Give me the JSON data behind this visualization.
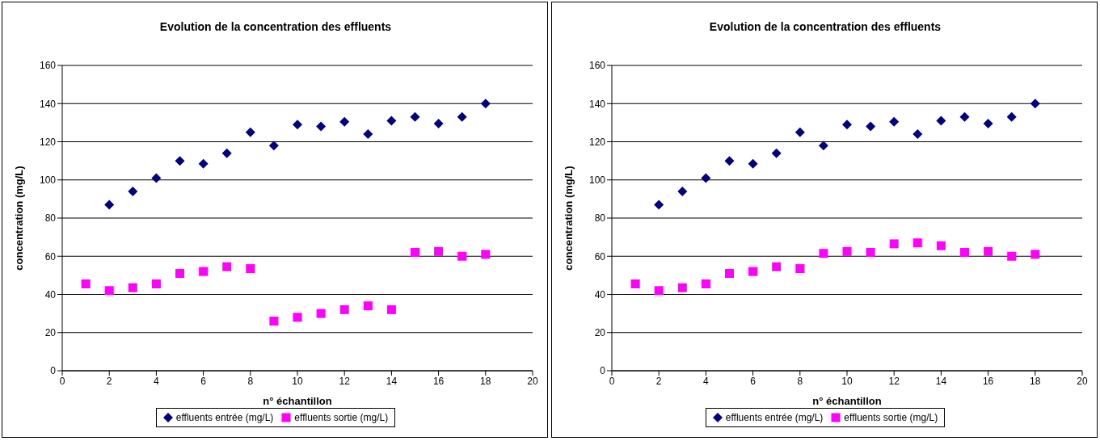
{
  "chart_data": [
    {
      "type": "scatter",
      "title": "Evolution de la concentration des effluents",
      "xlabel": "n° échantillon",
      "ylabel": "concentration (mg/L)",
      "xlim": [
        0,
        20
      ],
      "xticks": [
        0,
        2,
        4,
        6,
        8,
        10,
        12,
        14,
        16,
        18,
        20
      ],
      "ylim": [
        0,
        160
      ],
      "yticks": [
        0,
        20,
        40,
        60,
        80,
        100,
        120,
        140,
        160
      ],
      "grid": "y",
      "legend": "bottom",
      "series": [
        {
          "name": "effluents entrée (mg/L)",
          "color": "#000080",
          "marker": "diamond",
          "x": [
            2,
            3,
            4,
            5,
            6,
            7,
            8,
            9,
            10,
            11,
            12,
            13,
            14,
            15,
            16,
            17,
            18
          ],
          "values": [
            87,
            94,
            101,
            110,
            108.5,
            114,
            125,
            118,
            129,
            128,
            130.5,
            124,
            131,
            133,
            129.5,
            133,
            140
          ]
        },
        {
          "name": "effluents sortie (mg/L)",
          "color": "#ff00ff",
          "marker": "square",
          "x": [
            1,
            2,
            3,
            4,
            5,
            6,
            7,
            8,
            9,
            10,
            11,
            12,
            13,
            14,
            15,
            16,
            17,
            18
          ],
          "values": [
            45.5,
            42,
            43.5,
            45.5,
            51,
            52,
            54.5,
            53.5,
            26,
            28,
            30,
            32,
            34,
            32,
            62,
            62.5,
            60,
            61
          ]
        }
      ]
    },
    {
      "type": "scatter",
      "title": "Evolution de la concentration des effluents",
      "xlabel": "n° échantillon",
      "ylabel": "concentration (mg/L)",
      "xlim": [
        0,
        20
      ],
      "xticks": [
        0,
        2,
        4,
        6,
        8,
        10,
        12,
        14,
        16,
        18,
        20
      ],
      "ylim": [
        0,
        160
      ],
      "yticks": [
        0,
        20,
        40,
        60,
        80,
        100,
        120,
        140,
        160
      ],
      "grid": "y",
      "legend": "bottom",
      "series": [
        {
          "name": "effluents entrée (mg/L)",
          "color": "#000080",
          "marker": "diamond",
          "x": [
            2,
            3,
            4,
            5,
            6,
            7,
            8,
            9,
            10,
            11,
            12,
            13,
            14,
            15,
            16,
            17,
            18
          ],
          "values": [
            87,
            94,
            101,
            110,
            108.5,
            114,
            125,
            118,
            129,
            128,
            130.5,
            124,
            131,
            133,
            129.5,
            133,
            140
          ]
        },
        {
          "name": "effluents sortie (mg/L)",
          "color": "#ff00ff",
          "marker": "square",
          "x": [
            1,
            2,
            3,
            4,
            5,
            6,
            7,
            8,
            9,
            10,
            11,
            12,
            13,
            14,
            15,
            16,
            17,
            18
          ],
          "values": [
            45.5,
            42,
            43.5,
            45.5,
            51,
            52,
            54.5,
            53.5,
            61.5,
            62.5,
            62,
            66.5,
            67,
            65.5,
            62,
            62.5,
            60,
            61
          ]
        }
      ]
    }
  ]
}
